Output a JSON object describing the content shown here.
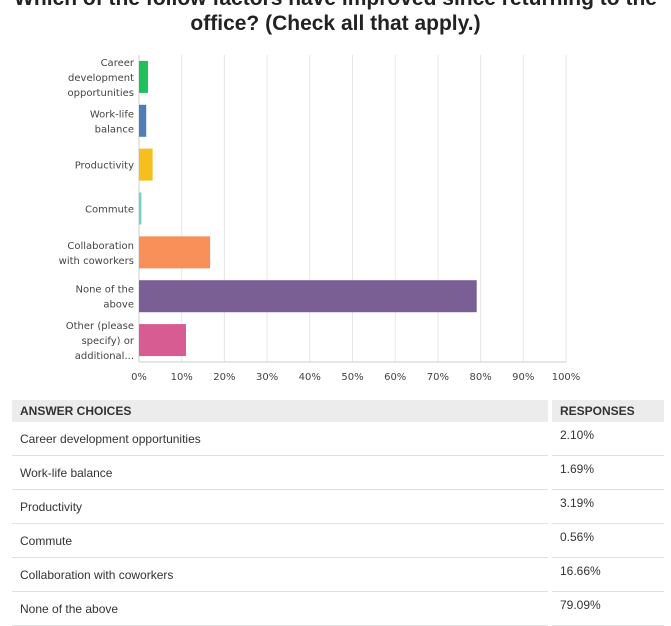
{
  "title": {
    "line1": "Which of the follow factors have improved since returning to the",
    "line2": "office? (Check all that apply.)"
  },
  "chart_data": {
    "type": "bar",
    "orientation": "horizontal",
    "categories": [
      [
        "Career",
        "development",
        "opportunities"
      ],
      [
        "Work-life",
        "balance"
      ],
      [
        "Productivity"
      ],
      [
        "Commute"
      ],
      [
        "Collaboration",
        "with coworkers"
      ],
      [
        "None of the",
        "above"
      ],
      [
        "Other (please",
        "specify) or",
        "additional..."
      ]
    ],
    "values": [
      2.1,
      1.69,
      3.19,
      0.56,
      16.66,
      79.09,
      11.0
    ],
    "colors": [
      "#1fc25a",
      "#4d7fb6",
      "#f7bf1d",
      "#6fd1cf",
      "#f9905a",
      "#7a5f95",
      "#d75c91"
    ],
    "xlim": [
      0,
      100
    ],
    "ticks": [
      "0%",
      "10%",
      "20%",
      "30%",
      "40%",
      "50%",
      "60%",
      "70%",
      "80%",
      "90%",
      "100%"
    ],
    "grid": true
  },
  "table": {
    "header": {
      "choice": "ANSWER CHOICES",
      "responses": "RESPONSES"
    },
    "rows": [
      {
        "choice": "Career development opportunities",
        "response": "2.10%"
      },
      {
        "choice": "Work-life balance",
        "response": "1.69%"
      },
      {
        "choice": "Productivity",
        "response": "3.19%"
      },
      {
        "choice": "Commute",
        "response": "0.56%"
      },
      {
        "choice": "Collaboration with coworkers",
        "response": "16.66%"
      },
      {
        "choice": "None of the above",
        "response": "79.09%"
      }
    ]
  }
}
